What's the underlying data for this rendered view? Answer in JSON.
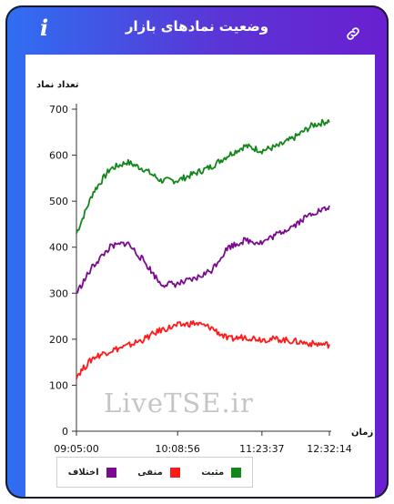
{
  "header": {
    "title": "وضعیت نمادهای بازار",
    "info_icon": "info-icon",
    "link_icon": "link-icon"
  },
  "watermark": "LiveTSE.ir",
  "colors": {
    "positive": "#11861a",
    "negative": "#ff1a1a",
    "difference": "#7a0b8f"
  },
  "chart_data": {
    "type": "line",
    "ylabel": "تعداد نماد",
    "xlabel": "زمان",
    "ylim": [
      0,
      700
    ],
    "yticks": [
      0,
      100,
      200,
      300,
      400,
      500,
      600,
      700
    ],
    "xticks": [
      "09:05:00",
      "10:08:56",
      "11:23:37",
      "12:32:14"
    ],
    "x": [
      "09:05:00",
      "09:15",
      "09:25",
      "09:35",
      "09:45",
      "09:55",
      "10:08:56",
      "10:20",
      "10:35",
      "10:50",
      "11:05",
      "11:23:37",
      "11:40",
      "12:00",
      "12:15",
      "12:32:14"
    ],
    "series": [
      {
        "name": "مثبت",
        "color": "#11861a",
        "values": [
          430,
          520,
          570,
          585,
          570,
          545,
          545,
          560,
          575,
          600,
          620,
          610,
          620,
          640,
          665,
          675
        ]
      },
      {
        "name": "منفی",
        "color": "#ff1a1a",
        "values": [
          120,
          160,
          175,
          185,
          200,
          220,
          230,
          235,
          225,
          200,
          205,
          200,
          200,
          195,
          190,
          188
        ]
      },
      {
        "name": "اختلاف",
        "color": "#7a0b8f",
        "values": [
          300,
          360,
          400,
          410,
          370,
          320,
          320,
          330,
          350,
          400,
          415,
          410,
          430,
          450,
          475,
          485
        ]
      }
    ],
    "legend": "bottom",
    "grid": false
  }
}
